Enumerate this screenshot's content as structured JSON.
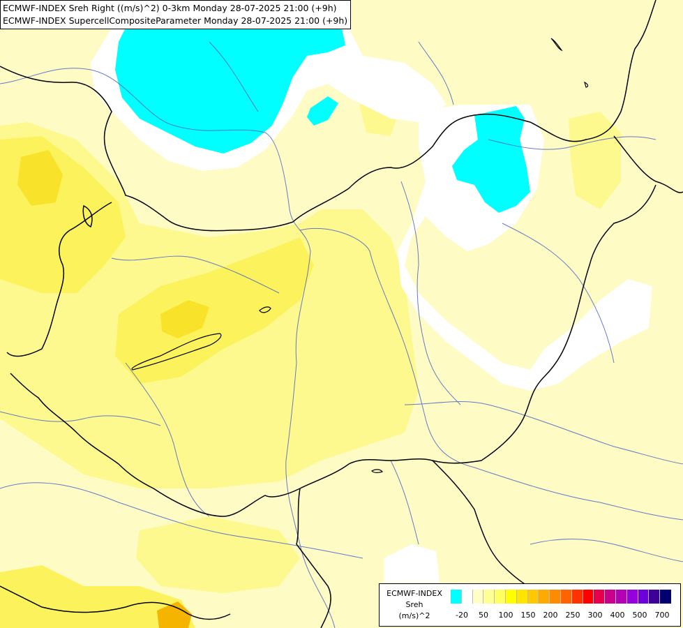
{
  "header": {
    "line1": "ECMWF-INDEX Sreh Right ((m/s)^2) 0-3km Monday 28-07-2025 21:00 (+9h)",
    "line2": "ECMWF-INDEX SupercellCompositeParameter Monday 28-07-2025 21:00 (+9h)"
  },
  "legend": {
    "title_line1": "ECMWF-INDEX",
    "title_line2": "Sreh",
    "title_line3": "(m/s)^2",
    "colors": [
      "#00ffff",
      "#ffffff",
      "#ffffc8",
      "#ffff96",
      "#ffff64",
      "#ffff00",
      "#ffe400",
      "#ffc800",
      "#ffaa00",
      "#ff8c00",
      "#ff6400",
      "#ff3200",
      "#ff0000",
      "#e6004b",
      "#c8008c",
      "#b400b4",
      "#9600dc",
      "#6e00dc",
      "#3c0096",
      "#00006e"
    ],
    "tick_labels": [
      "-20",
      "50",
      "100",
      "150",
      "200",
      "250",
      "300",
      "400",
      "500",
      "700"
    ]
  }
}
